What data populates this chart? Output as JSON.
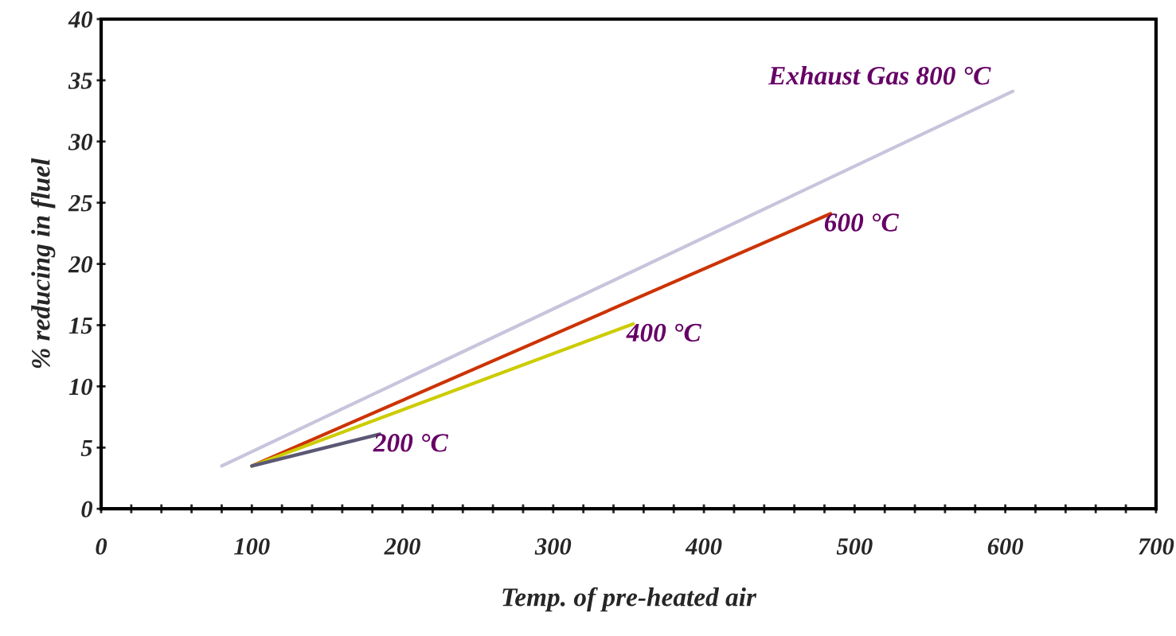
{
  "chart_data": {
    "type": "line",
    "xlabel": "Temp. of pre-heated air",
    "ylabel": "% reducing in fluel",
    "xlim": [
      0,
      700
    ],
    "ylim": [
      0,
      40
    ],
    "xticks": [
      0,
      {
        "value": 20,
        "label": null
      },
      {
        "value": 40,
        "label": null
      },
      {
        "value": 60,
        "label": null
      },
      {
        "value": 80,
        "label": null
      },
      100,
      {
        "value": 120,
        "label": null
      },
      {
        "value": 140,
        "label": null
      },
      {
        "value": 160,
        "label": null
      },
      {
        "value": 180,
        "label": null
      },
      200,
      {
        "value": 220,
        "label": null
      },
      {
        "value": 240,
        "label": null
      },
      {
        "value": 260,
        "label": null
      },
      {
        "value": 280,
        "label": null
      },
      300,
      {
        "value": 320,
        "label": null
      },
      {
        "value": 340,
        "label": null
      },
      {
        "value": 360,
        "label": null
      },
      {
        "value": 380,
        "label": null
      },
      400,
      {
        "value": 420,
        "label": null
      },
      {
        "value": 440,
        "label": null
      },
      {
        "value": 460,
        "label": null
      },
      {
        "value": 480,
        "label": null
      },
      500,
      {
        "value": 520,
        "label": null
      },
      {
        "value": 540,
        "label": null
      },
      {
        "value": 560,
        "label": null
      },
      {
        "value": 580,
        "label": null
      },
      600,
      {
        "value": 620,
        "label": null
      },
      {
        "value": 640,
        "label": null
      },
      {
        "value": 660,
        "label": null
      },
      {
        "value": 680,
        "label": null
      },
      700
    ],
    "yticks": [
      0,
      5,
      10,
      15,
      20,
      25,
      30,
      35,
      40
    ],
    "grid": false,
    "legend": false,
    "marker": "none",
    "line_style": "solid",
    "series": [
      {
        "name": "Exhaust Gas 800 °C",
        "color": "#c8c4dc",
        "x": [
          80,
          605
        ],
        "values": [
          3.5,
          34.1
        ]
      },
      {
        "name": "600 °C",
        "color": "#cc3300",
        "x": [
          100,
          484
        ],
        "values": [
          3.5,
          24.1
        ]
      },
      {
        "name": "400 °C",
        "color": "#cccc00",
        "x": [
          100,
          353
        ],
        "values": [
          3.5,
          15.1
        ]
      },
      {
        "name": "200 °C",
        "color": "#5a5874",
        "x": [
          100,
          185
        ],
        "values": [
          3.5,
          6.1
        ]
      }
    ]
  }
}
